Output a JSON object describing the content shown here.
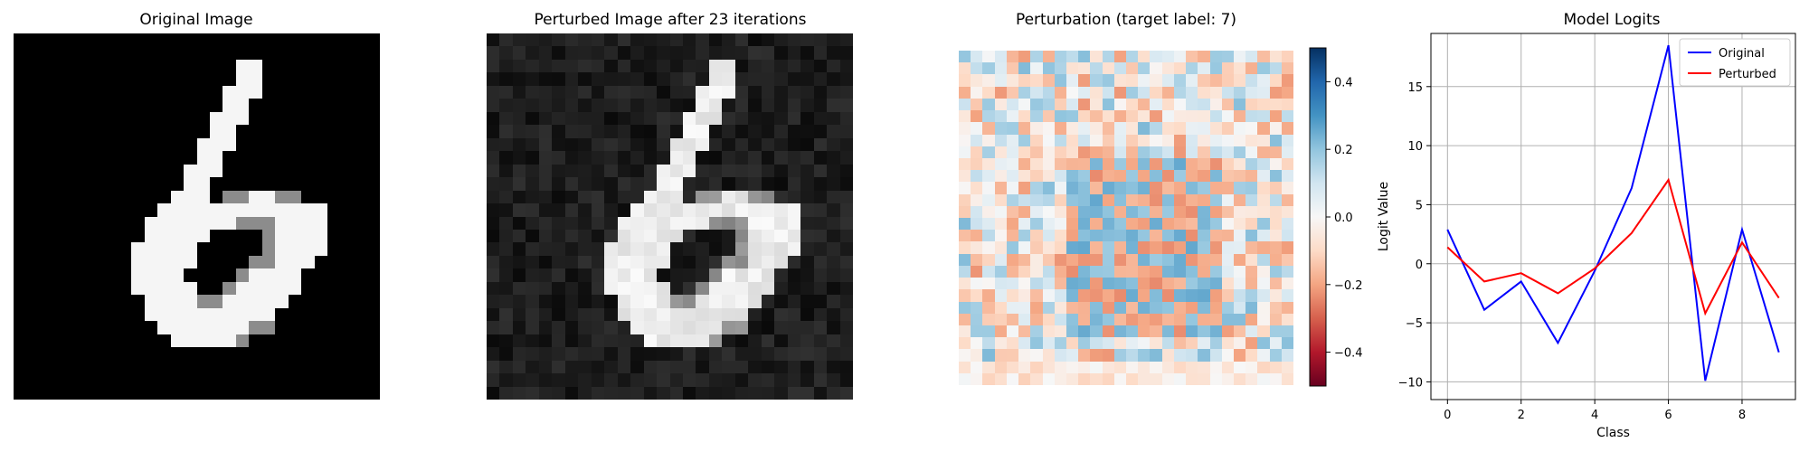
{
  "panels": {
    "original": {
      "title": "Original Image"
    },
    "perturbed": {
      "title": "Perturbed Image after 23 iterations"
    },
    "perturbation": {
      "title": "Perturbation (target label: 7)"
    },
    "logits": {
      "title": "Model Logits"
    }
  },
  "images": {
    "grid_size": 28,
    "digit_rows_original": [
      "............................",
      "............................",
      ".................ww.........",
      ".................ww.........",
      "................www.........",
      "................ww..........",
      "...............www..........",
      "...............ww...........",
      "..............www...........",
      "..............ww............",
      ".............www............",
      ".............ww.............",
      "............www.ggwwgg......",
      "...........wwwwwwwwwwwww....",
      "..........wwwwwwwgggwwww....",
      "..........wwwww....gwwww....",
      ".........wwwww.....gwwww....",
      ".........wwwww....ggwww.....",
      ".........wwww....gwwww......",
      ".........wwwww..gwwwww......",
      "..........wwwwggwwwww.......",
      "..........wwwwwwwwww........",
      "...........wwwwwwwgg........",
      "............wwwwwg..........",
      "............................",
      "............................",
      "............................",
      "............................"
    ],
    "background_noise_seed": 23
  },
  "colorbar": {
    "ticks": [
      "0.4",
      "0.2",
      "0.0",
      "−0.2",
      "−0.4"
    ],
    "tick_values": [
      0.4,
      0.2,
      0.0,
      -0.2,
      -0.4
    ],
    "vmin": -0.5,
    "vmax": 0.5,
    "colormap": "RdBu"
  },
  "chart_data": {
    "type": "line",
    "title": "Model Logits",
    "xlabel": "Class",
    "ylabel": "Logit Value",
    "x": [
      0,
      1,
      2,
      3,
      4,
      5,
      6,
      7,
      8,
      9
    ],
    "xlim": [
      -0.45,
      9.45
    ],
    "ylim": [
      -11.5,
      19.5
    ],
    "x_ticks": [
      0,
      2,
      4,
      6,
      8
    ],
    "y_ticks": [
      -10,
      -5,
      0,
      5,
      10,
      15
    ],
    "grid": true,
    "legend_position": "top-right",
    "series": [
      {
        "name": "Original",
        "color": "#0000ff",
        "values": [
          2.9,
          -3.9,
          -1.5,
          -6.7,
          -0.6,
          6.4,
          18.5,
          -9.9,
          2.9,
          -7.5
        ]
      },
      {
        "name": "Perturbed",
        "color": "#ff0000",
        "values": [
          1.4,
          -1.5,
          -0.8,
          -2.5,
          -0.4,
          2.6,
          7.1,
          -4.2,
          1.8,
          -2.9
        ]
      }
    ]
  }
}
